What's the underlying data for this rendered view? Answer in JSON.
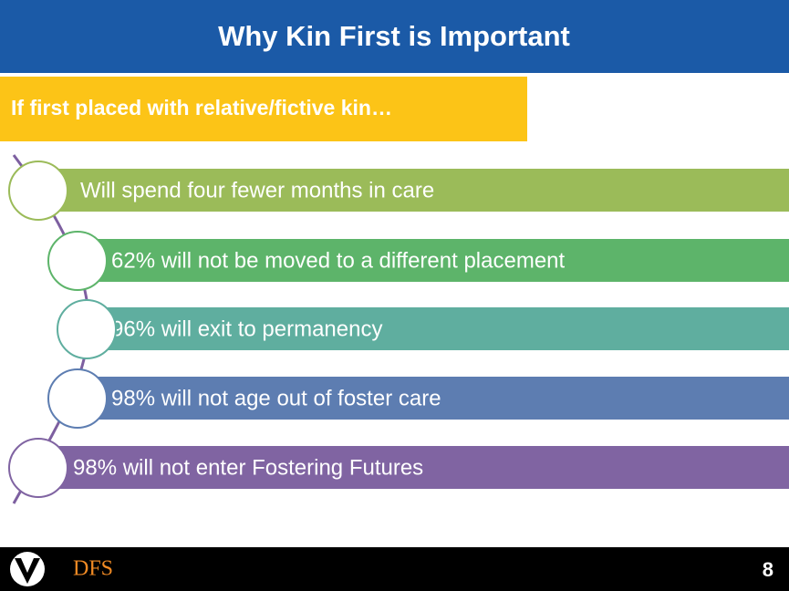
{
  "header": {
    "title": "Why Kin First is Important"
  },
  "subtitle": "If first placed with relative/fictive kin…",
  "items": [
    "Will spend four fewer months in care",
    "62% will not be moved to a different placement",
    "96% will exit to permanency",
    "98% will not age out of foster care",
    "98% will not enter Fostering Futures"
  ],
  "footer": {
    "logo_text": "DFS",
    "page_number": "8"
  }
}
